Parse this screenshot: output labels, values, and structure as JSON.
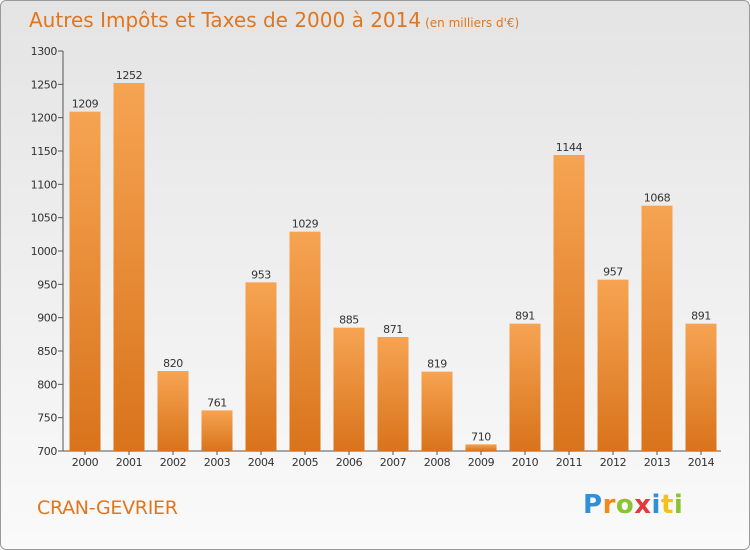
{
  "header": {
    "title": "Autres Impôts et Taxes de 2000 à 2014",
    "subtitle": "(en milliers d'€)"
  },
  "footer": {
    "city": "CRAN-GEVRIER",
    "logo_letters": [
      "P",
      "r",
      "o",
      "x",
      "i",
      "t",
      "i"
    ]
  },
  "colors": {
    "title": "#e0761f",
    "bar_light": "#f6a452",
    "bar_dark": "#d9731c"
  },
  "chart_data": {
    "type": "bar",
    "title": "Autres Impôts et Taxes de 2000 à 2014",
    "subtitle": "(en milliers d'€)",
    "categories": [
      "2000",
      "2001",
      "2002",
      "2003",
      "2004",
      "2005",
      "2006",
      "2007",
      "2008",
      "2009",
      "2010",
      "2011",
      "2012",
      "2013",
      "2014"
    ],
    "values": [
      1209,
      1252,
      820,
      761,
      953,
      1029,
      885,
      871,
      819,
      710,
      891,
      1144,
      957,
      1068,
      891
    ],
    "ylim": [
      700,
      1300
    ],
    "yticks": [
      700,
      750,
      800,
      850,
      900,
      950,
      1000,
      1050,
      1100,
      1150,
      1200,
      1250,
      1300
    ],
    "grid": false,
    "xlabel": "",
    "ylabel": ""
  }
}
